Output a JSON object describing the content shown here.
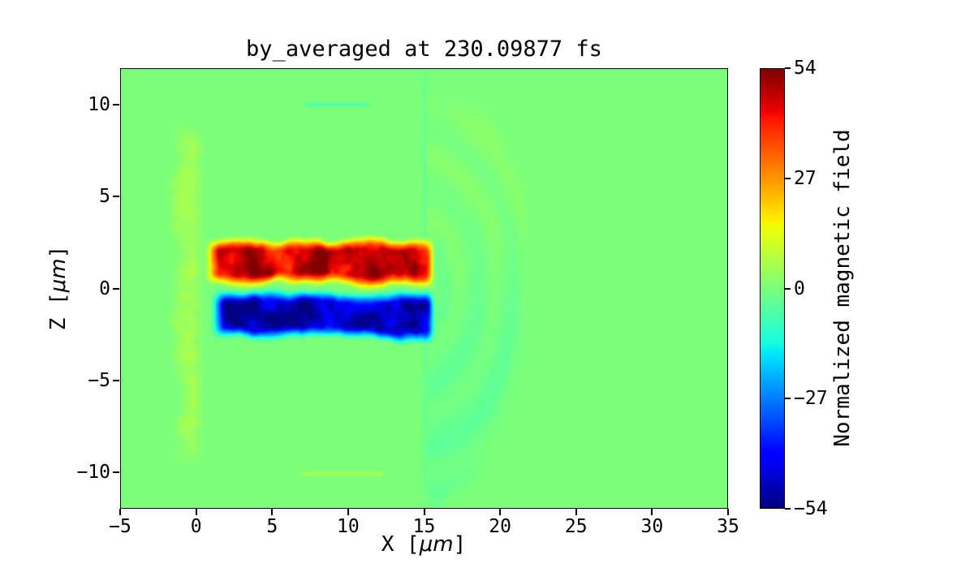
{
  "chart_data": {
    "type": "heatmap",
    "title": "by_averaged at 230.09877 fs",
    "xlabel": {
      "pre": "X [",
      "math": "μm",
      "post": "]"
    },
    "ylabel": {
      "pre": "Z [",
      "math": "μm",
      "post": "]"
    },
    "xlim": [
      -5,
      35
    ],
    "ylim": [
      -12,
      12
    ],
    "xticks": [
      {
        "value": -5,
        "label": "−5"
      },
      {
        "value": 0,
        "label": "0"
      },
      {
        "value": 5,
        "label": "5"
      },
      {
        "value": 10,
        "label": "10"
      },
      {
        "value": 15,
        "label": "15"
      },
      {
        "value": 20,
        "label": "20"
      },
      {
        "value": 25,
        "label": "25"
      },
      {
        "value": 30,
        "label": "30"
      },
      {
        "value": 35,
        "label": "35"
      }
    ],
    "yticks": [
      {
        "value": 10,
        "label": "10"
      },
      {
        "value": 5,
        "label": "5"
      },
      {
        "value": 0,
        "label": "0"
      },
      {
        "value": -5,
        "label": "−5"
      },
      {
        "value": -10,
        "label": "−10"
      }
    ],
    "colormap": "jet",
    "clim": [
      -54,
      54
    ],
    "background_value": 0,
    "colorbar": {
      "label": "Normalized magnetic field",
      "ticks": [
        {
          "value": 54,
          "label": "54"
        },
        {
          "value": 27,
          "label": "27"
        },
        {
          "value": 0,
          "label": "0"
        },
        {
          "value": -27,
          "label": "−27"
        },
        {
          "value": -54,
          "label": "−54"
        }
      ]
    },
    "regions": [
      {
        "kind": "band",
        "name": "positive-field-band",
        "x": [
          0.9,
          15.4
        ],
        "z_center": 1.45,
        "z_halfwidth": 1.1,
        "peak": 54,
        "sign": 1
      },
      {
        "kind": "band",
        "name": "negative-field-band",
        "x": [
          1.3,
          15.4
        ],
        "z_center": -1.45,
        "z_halfwidth": 1.1,
        "peak": 54,
        "sign": -1
      },
      {
        "kind": "striations",
        "name": "left-edge-striations",
        "x": [
          -3.8,
          0.5
        ],
        "z": [
          -9.5,
          9.0
        ],
        "value": 5
      },
      {
        "kind": "fan",
        "name": "right-wave-fan",
        "x": [
          15,
          22.5
        ],
        "z": [
          -11.5,
          12
        ],
        "radius": 8.0,
        "value": -3
      },
      {
        "kind": "edge-line",
        "name": "boundary-line-x15",
        "x": 15.05,
        "z": [
          -11.3,
          12
        ],
        "value": -5
      },
      {
        "kind": "dash",
        "name": "top-dash-z10",
        "x": [
          7.2,
          11.3
        ],
        "z": 10.05,
        "value": -7
      },
      {
        "kind": "dash",
        "name": "bottom-dash-z-10",
        "x": [
          6.8,
          12.3
        ],
        "z": -10.15,
        "value": 6.5
      }
    ]
  }
}
